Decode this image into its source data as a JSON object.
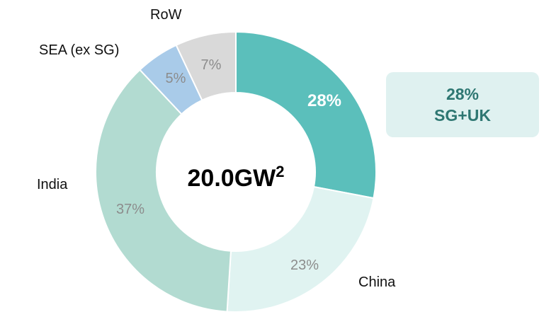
{
  "chart_data": {
    "type": "pie",
    "variant": "donut",
    "center": {
      "value": "20.0GW",
      "superscript": "2"
    },
    "slices": [
      {
        "name": "SG+UK",
        "value": 28,
        "value_label": "28%",
        "color": "#5bbfbb",
        "label_color": "#ffffff",
        "emphasis": true,
        "outer_label": ""
      },
      {
        "name": "China",
        "value": 23,
        "value_label": "23%",
        "color": "#e0f3f1",
        "label_color": "#8c8c8c",
        "emphasis": false,
        "outer_label": "China"
      },
      {
        "name": "India",
        "value": 37,
        "value_label": "37%",
        "color": "#b2dbd1",
        "label_color": "#8c8c8c",
        "emphasis": false,
        "outer_label": "India"
      },
      {
        "name": "SEA (ex SG)",
        "value": 5,
        "value_label": "5%",
        "color": "#a9cbe9",
        "label_color": "#8c8c8c",
        "emphasis": false,
        "outer_label": "SEA (ex SG)"
      },
      {
        "name": "RoW",
        "value": 7,
        "value_label": "7%",
        "color": "#d9d9d9",
        "label_color": "#8c8c8c",
        "emphasis": false,
        "outer_label": "RoW"
      }
    ]
  },
  "callout": {
    "line1": "28%",
    "line2": "SG+UK",
    "background": "#dff1f0",
    "text_color": "#2e7772"
  }
}
